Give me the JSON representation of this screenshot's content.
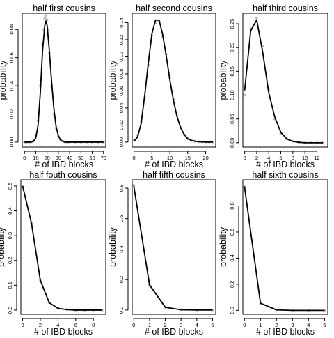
{
  "chart_data": [
    {
      "type": "line",
      "title": "half first cousins",
      "xlabel": "# of IBD blocks",
      "ylabel": "probability",
      "xlim": [
        -2,
        72
      ],
      "ylim": [
        -0.0035,
        0.0915
      ],
      "xticks": [
        0,
        10,
        20,
        30,
        40,
        50,
        60,
        70
      ],
      "xtick_labels": [
        "0",
        "10",
        "20",
        "30",
        "40",
        "50",
        "60",
        "70"
      ],
      "yticks": [
        0,
        0.02,
        0.04,
        0.06,
        0.08
      ],
      "ytick_labels": [
        "0.00",
        "0.02",
        "0.04",
        "0.06",
        "0.08"
      ],
      "grid": false,
      "series": [
        {
          "role": "theory",
          "x": [
            0,
            5,
            8,
            10,
            12,
            14,
            16,
            18,
            19,
            20,
            22,
            24,
            26,
            28,
            30,
            32,
            34,
            36,
            40,
            50,
            60,
            70
          ],
          "y": [
            0.0,
            0.0,
            0.0005,
            0.003,
            0.012,
            0.035,
            0.065,
            0.083,
            0.086,
            0.083,
            0.065,
            0.043,
            0.024,
            0.011,
            0.0045,
            0.0015,
            0.0005,
            0.0,
            0.0,
            0.0,
            0.0,
            0.0
          ]
        },
        {
          "role": "simulated",
          "x": [
            0,
            2,
            4,
            6,
            8,
            10,
            12,
            14,
            16,
            17,
            18,
            19,
            20,
            21,
            22,
            24,
            26,
            28,
            30,
            32,
            34,
            36,
            38,
            40,
            45,
            50,
            55,
            60,
            65,
            70
          ],
          "y": [
            0.0,
            0.0,
            0.0,
            0.0,
            0.001,
            0.005,
            0.015,
            0.04,
            0.07,
            0.08,
            0.088,
            0.09,
            0.087,
            0.08,
            0.063,
            0.04,
            0.02,
            0.01,
            0.004,
            0.0015,
            0.0005,
            0.0,
            0.0,
            0.0,
            0.0,
            0.0,
            0.0,
            0.0,
            0.0,
            0.0
          ]
        }
      ]
    },
    {
      "type": "line",
      "title": "half second cousins",
      "xlabel": "# of IBD blocks",
      "ylabel": "probability",
      "xlim": [
        -0.5,
        22.8
      ],
      "ylim": [
        -0.0058,
        0.151
      ],
      "xticks": [
        0,
        5,
        10,
        15,
        20
      ],
      "xtick_labels": [
        "0",
        "5",
        "10",
        "15",
        "20"
      ],
      "yticks": [
        0,
        0.02,
        0.04,
        0.06,
        0.08,
        0.1,
        0.12,
        0.14
      ],
      "ytick_labels": [
        "0.00",
        "0.02",
        "0.04",
        "0.06",
        "0.08",
        "0.10",
        "0.12",
        "0.14"
      ],
      "grid": false,
      "series": [
        {
          "role": "theory",
          "x": [
            0,
            1,
            2,
            3,
            4,
            5,
            6,
            7,
            8,
            9,
            10,
            11,
            12,
            13,
            14,
            15,
            16,
            17,
            18,
            19,
            20,
            21,
            22
          ],
          "y": [
            0.001,
            0.006,
            0.022,
            0.055,
            0.093,
            0.127,
            0.143,
            0.143,
            0.126,
            0.101,
            0.073,
            0.049,
            0.03,
            0.017,
            0.009,
            0.004,
            0.002,
            0.001,
            0.0005,
            0.0002,
            0.0,
            0.0,
            0.0
          ]
        },
        {
          "role": "simulated",
          "x": [
            0,
            1,
            2,
            3,
            4,
            5,
            6,
            7,
            8,
            9,
            10,
            11,
            12,
            13,
            14,
            15,
            16,
            17,
            18,
            19,
            20,
            21,
            22
          ],
          "y": [
            0.002,
            0.008,
            0.024,
            0.052,
            0.09,
            0.125,
            0.14,
            0.142,
            0.124,
            0.103,
            0.075,
            0.05,
            0.031,
            0.017,
            0.009,
            0.004,
            0.002,
            0.001,
            0.0005,
            0.0002,
            0.0,
            0.0,
            0.0
          ]
        }
      ]
    },
    {
      "type": "line",
      "title": "half third cousins",
      "xlabel": "# of IBD blocks",
      "ylabel": "probability",
      "xlim": [
        -0.3,
        13.8
      ],
      "ylim": [
        -0.009,
        0.272
      ],
      "xticks": [
        0,
        2,
        4,
        6,
        8,
        10,
        12
      ],
      "xtick_labels": [
        "0",
        "2",
        "4",
        "6",
        "8",
        "10",
        "12"
      ],
      "yticks": [
        0,
        0.05,
        0.1,
        0.15,
        0.2,
        0.25
      ],
      "ytick_labels": [
        "0.00",
        "0.05",
        "0.10",
        "0.15",
        "0.20",
        "0.25"
      ],
      "grid": false,
      "series": [
        {
          "role": "theory",
          "x": [
            0,
            1,
            2,
            3,
            4,
            5,
            6,
            7,
            8,
            9,
            10,
            11,
            12,
            13
          ],
          "y": [
            0.11,
            0.235,
            0.258,
            0.19,
            0.105,
            0.054,
            0.022,
            0.008,
            0.003,
            0.001,
            0.0,
            0.0,
            0.0,
            0.0
          ]
        },
        {
          "role": "simulated",
          "x": [
            0,
            1,
            2,
            3,
            4,
            5,
            6,
            7,
            8,
            9,
            10,
            11,
            12,
            13
          ],
          "y": [
            0.1,
            0.24,
            0.262,
            0.203,
            0.11,
            0.05,
            0.02,
            0.008,
            0.003,
            0.001,
            0.0,
            0.0,
            0.0,
            0.0
          ]
        }
      ]
    },
    {
      "type": "line",
      "title": "half fouth cousins",
      "xlabel": "# of IBD blocks",
      "ylabel": "probability",
      "xlim": [
        -0.2,
        9.4
      ],
      "ylim": [
        -0.017,
        0.525
      ],
      "xticks": [
        0,
        2,
        4,
        6,
        8
      ],
      "xtick_labels": [
        "0",
        "2",
        "4",
        "6",
        "8"
      ],
      "yticks": [
        0,
        0.1,
        0.2,
        0.3,
        0.4,
        0.5
      ],
      "ytick_labels": [
        "0.0",
        "0.1",
        "0.2",
        "0.3",
        "0.4",
        "0.5"
      ],
      "grid": false,
      "series": [
        {
          "role": "theory",
          "x": [
            0,
            1,
            2,
            3,
            4,
            5,
            6,
            7,
            8,
            9
          ],
          "y": [
            0.5,
            0.35,
            0.12,
            0.03,
            0.007,
            0.002,
            0.0,
            0.0,
            0.0,
            0.0
          ]
        },
        {
          "role": "simulated",
          "x": [
            0,
            1,
            2,
            3,
            4,
            5,
            6,
            7,
            8,
            9
          ],
          "y": [
            0.5,
            0.35,
            0.12,
            0.03,
            0.007,
            0.002,
            0.0,
            0.0,
            0.0,
            0.0
          ]
        }
      ]
    },
    {
      "type": "line",
      "title": "half fifth cousins",
      "xlabel": "# of IBD blocks",
      "ylabel": "probability",
      "xlim": [
        -0.1,
        5.2
      ],
      "ylim": [
        -0.028,
        0.855
      ],
      "xticks": [
        0,
        1,
        2,
        3,
        4,
        5
      ],
      "xtick_labels": [
        "0",
        "1",
        "2",
        "3",
        "4",
        "5"
      ],
      "yticks": [
        0,
        0.2,
        0.4,
        0.6,
        0.8
      ],
      "ytick_labels": [
        "0.0",
        "0.2",
        "0.4",
        "0.6",
        "0.8"
      ],
      "grid": false,
      "series": [
        {
          "role": "theory",
          "x": [
            0,
            1,
            2,
            3,
            4,
            5
          ],
          "y": [
            0.815,
            0.165,
            0.018,
            0.002,
            0.0,
            0.0
          ]
        },
        {
          "role": "simulated",
          "x": [
            0,
            1,
            2,
            3,
            4,
            5
          ],
          "y": [
            0.818,
            0.162,
            0.018,
            0.002,
            0.0,
            0.0
          ]
        }
      ]
    },
    {
      "type": "line",
      "title": "half sixth cousins",
      "xlabel": "# of IBD blocks",
      "ylabel": "probability",
      "xlim": [
        -0.1,
        5.2
      ],
      "ylim": [
        -0.03,
        1.0
      ],
      "xticks": [
        0,
        1,
        2,
        3,
        4,
        5
      ],
      "xtick_labels": [
        "0",
        "1",
        "2",
        "3",
        "4",
        "5"
      ],
      "yticks": [
        0,
        0.2,
        0.4,
        0.6,
        0.8
      ],
      "ytick_labels": [
        "0.0",
        "0.2",
        "0.4",
        "0.6",
        "0.8"
      ],
      "grid": false,
      "series": [
        {
          "role": "theory",
          "x": [
            0,
            1,
            2,
            3,
            4,
            5
          ],
          "y": [
            0.95,
            0.055,
            0.004,
            0.0,
            0.0,
            0.0
          ]
        },
        {
          "role": "simulated",
          "x": [
            0,
            1,
            2,
            3,
            4,
            5
          ],
          "y": [
            0.945,
            0.05,
            0.004,
            0.0,
            0.0,
            0.0
          ]
        }
      ]
    }
  ],
  "colors": {
    "line": "#000000",
    "points": "#b8b8b8",
    "axis": "#000000"
  }
}
